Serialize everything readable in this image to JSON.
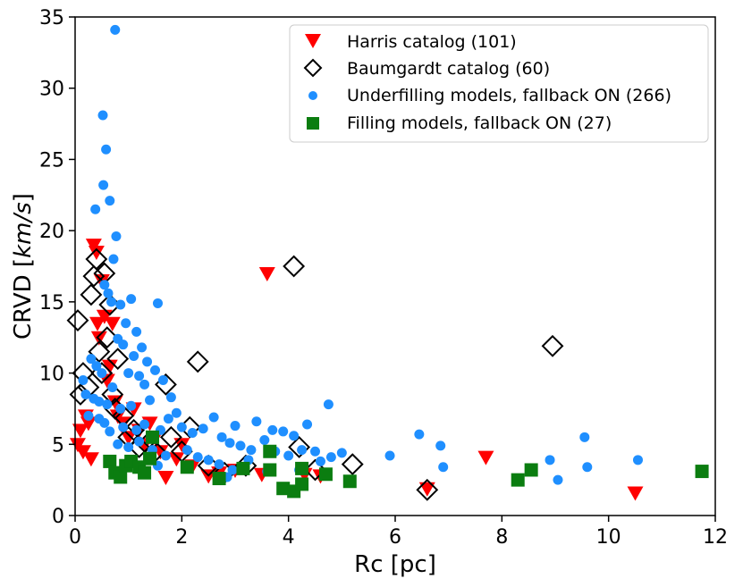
{
  "chart_data": {
    "type": "scatter",
    "xlabel": "Rc [pc]",
    "ylabel_prefix": "CRVD [",
    "ylabel_unit": "km/s",
    "ylabel_suffix": "]",
    "xlim": [
      0,
      12
    ],
    "ylim": [
      0,
      35
    ],
    "xticks": [
      0,
      2,
      4,
      6,
      8,
      10,
      12
    ],
    "yticks": [
      0,
      5,
      10,
      15,
      20,
      25,
      30,
      35
    ],
    "grid": false,
    "legend_position": "top-right",
    "series": [
      {
        "name": "Harris catalog (101)",
        "marker": "triangle-down",
        "color": "#ff0000",
        "points": [
          [
            0.05,
            5.0
          ],
          [
            0.1,
            6.0
          ],
          [
            0.15,
            4.5
          ],
          [
            0.2,
            7.0
          ],
          [
            0.25,
            6.5
          ],
          [
            0.3,
            4.0
          ],
          [
            0.35,
            19.0
          ],
          [
            0.4,
            18.5
          ],
          [
            0.42,
            13.5
          ],
          [
            0.45,
            12.5
          ],
          [
            0.5,
            16.5
          ],
          [
            0.55,
            14.0
          ],
          [
            0.6,
            9.5
          ],
          [
            0.65,
            10.5
          ],
          [
            0.7,
            13.5
          ],
          [
            0.75,
            8.0
          ],
          [
            0.8,
            7.0
          ],
          [
            0.9,
            6.5
          ],
          [
            1.0,
            5.5
          ],
          [
            1.1,
            7.5
          ],
          [
            1.2,
            6.0
          ],
          [
            1.3,
            5.0
          ],
          [
            1.4,
            6.5
          ],
          [
            1.5,
            5.5
          ],
          [
            1.6,
            4.5
          ],
          [
            1.7,
            2.7
          ],
          [
            1.9,
            4.0
          ],
          [
            2.0,
            5.0
          ],
          [
            2.2,
            3.5
          ],
          [
            2.5,
            2.8
          ],
          [
            2.7,
            3.0
          ],
          [
            3.0,
            3.2
          ],
          [
            3.5,
            2.9
          ],
          [
            3.6,
            17.0
          ],
          [
            4.3,
            2.9
          ],
          [
            4.6,
            2.8
          ],
          [
            6.6,
            1.9
          ],
          [
            7.7,
            4.1
          ],
          [
            10.5,
            1.6
          ]
        ]
      },
      {
        "name": "Baumgardt catalog (60)",
        "marker": "diamond",
        "color": "#000000",
        "points": [
          [
            0.05,
            13.7
          ],
          [
            0.1,
            8.5
          ],
          [
            0.15,
            10.0
          ],
          [
            0.25,
            9.0
          ],
          [
            0.3,
            15.5
          ],
          [
            0.35,
            16.8
          ],
          [
            0.4,
            18.0
          ],
          [
            0.45,
            11.5
          ],
          [
            0.5,
            10.0
          ],
          [
            0.55,
            17.0
          ],
          [
            0.6,
            12.5
          ],
          [
            0.65,
            14.8
          ],
          [
            0.7,
            8.5
          ],
          [
            0.75,
            7.5
          ],
          [
            0.8,
            11.0
          ],
          [
            0.9,
            7.0
          ],
          [
            1.0,
            5.5
          ],
          [
            1.1,
            6.0
          ],
          [
            1.2,
            4.8
          ],
          [
            1.35,
            5.0
          ],
          [
            1.5,
            4.5
          ],
          [
            1.7,
            9.2
          ],
          [
            1.8,
            5.5
          ],
          [
            2.0,
            4.5
          ],
          [
            2.15,
            6.2
          ],
          [
            2.3,
            10.8
          ],
          [
            2.5,
            3.5
          ],
          [
            2.8,
            3.0
          ],
          [
            3.2,
            3.5
          ],
          [
            4.1,
            17.5
          ],
          [
            4.2,
            4.8
          ],
          [
            4.5,
            3.2
          ],
          [
            5.2,
            3.6
          ],
          [
            6.6,
            1.8
          ],
          [
            8.95,
            11.9
          ]
        ]
      },
      {
        "name": "Underfilling models, fallback ON (266)",
        "marker": "circle",
        "color": "#1f8fff",
        "points": [
          [
            0.75,
            34.1
          ],
          [
            0.52,
            28.1
          ],
          [
            0.58,
            25.7
          ],
          [
            0.53,
            23.2
          ],
          [
            0.65,
            22.1
          ],
          [
            0.38,
            21.5
          ],
          [
            0.77,
            19.6
          ],
          [
            0.72,
            18.0
          ],
          [
            0.55,
            16.2
          ],
          [
            0.62,
            15.6
          ],
          [
            0.68,
            15.0
          ],
          [
            0.85,
            14.8
          ],
          [
            1.55,
            14.9
          ],
          [
            1.05,
            15.2
          ],
          [
            0.95,
            13.5
          ],
          [
            1.15,
            12.9
          ],
          [
            0.8,
            12.4
          ],
          [
            0.9,
            12.0
          ],
          [
            1.25,
            11.8
          ],
          [
            1.1,
            11.2
          ],
          [
            1.35,
            10.8
          ],
          [
            0.3,
            11.0
          ],
          [
            0.4,
            10.5
          ],
          [
            0.5,
            10.0
          ],
          [
            1.0,
            10.0
          ],
          [
            1.2,
            9.8
          ],
          [
            1.5,
            10.2
          ],
          [
            1.65,
            9.5
          ],
          [
            1.3,
            9.2
          ],
          [
            0.7,
            9.0
          ],
          [
            0.2,
            8.5
          ],
          [
            0.35,
            8.2
          ],
          [
            0.45,
            8.0
          ],
          [
            0.6,
            7.8
          ],
          [
            0.85,
            7.5
          ],
          [
            1.05,
            7.7
          ],
          [
            1.4,
            8.1
          ],
          [
            1.8,
            8.3
          ],
          [
            1.9,
            7.2
          ],
          [
            1.75,
            6.8
          ],
          [
            2.0,
            6.2
          ],
          [
            0.25,
            7.0
          ],
          [
            0.55,
            6.5
          ],
          [
            0.9,
            6.2
          ],
          [
            1.15,
            6.0
          ],
          [
            1.3,
            6.4
          ],
          [
            1.6,
            6.0
          ],
          [
            2.2,
            5.8
          ],
          [
            2.4,
            6.1
          ],
          [
            2.6,
            6.9
          ],
          [
            3.0,
            6.3
          ],
          [
            3.4,
            6.6
          ],
          [
            3.7,
            6.0
          ],
          [
            3.9,
            5.9
          ],
          [
            4.1,
            5.6
          ],
          [
            4.35,
            6.4
          ],
          [
            4.75,
            7.8
          ],
          [
            2.75,
            5.5
          ],
          [
            2.9,
            5.1
          ],
          [
            3.1,
            4.9
          ],
          [
            3.3,
            4.6
          ],
          [
            3.55,
            5.3
          ],
          [
            3.75,
            4.5
          ],
          [
            4.0,
            4.2
          ],
          [
            4.25,
            4.6
          ],
          [
            4.5,
            4.5
          ],
          [
            4.8,
            4.1
          ],
          [
            5.0,
            4.4
          ],
          [
            5.9,
            4.2
          ],
          [
            6.45,
            5.7
          ],
          [
            6.85,
            4.9
          ],
          [
            6.9,
            3.4
          ],
          [
            8.9,
            3.9
          ],
          [
            9.05,
            2.5
          ],
          [
            9.55,
            5.5
          ],
          [
            9.6,
            3.4
          ],
          [
            10.55,
            3.9
          ],
          [
            0.8,
            5.0
          ],
          [
            1.0,
            4.8
          ],
          [
            1.2,
            5.2
          ],
          [
            1.45,
            4.6
          ],
          [
            1.7,
            4.2
          ],
          [
            2.1,
            4.6
          ],
          [
            2.3,
            4.1
          ],
          [
            2.5,
            3.9
          ],
          [
            2.7,
            3.6
          ],
          [
            2.85,
            2.7
          ],
          [
            0.15,
            9.5
          ],
          [
            0.45,
            6.8
          ],
          [
            0.65,
            5.9
          ],
          [
            1.55,
            3.5
          ],
          [
            2.95,
            3.2
          ],
          [
            3.25,
            3.9
          ],
          [
            4.2,
            3.2
          ],
          [
            4.6,
            3.8
          ],
          [
            3.6,
            3.1
          ]
        ]
      },
      {
        "name": "Filling models, fallback ON (27)",
        "marker": "square",
        "color": "#0b7d10",
        "points": [
          [
            0.65,
            3.8
          ],
          [
            0.75,
            3.0
          ],
          [
            0.85,
            2.7
          ],
          [
            0.95,
            3.5
          ],
          [
            1.05,
            3.8
          ],
          [
            1.2,
            3.4
          ],
          [
            1.3,
            3.0
          ],
          [
            1.4,
            4.0
          ],
          [
            1.45,
            5.5
          ],
          [
            2.1,
            3.4
          ],
          [
            2.7,
            2.6
          ],
          [
            3.15,
            3.3
          ],
          [
            3.65,
            4.5
          ],
          [
            3.65,
            3.2
          ],
          [
            3.9,
            1.9
          ],
          [
            4.1,
            1.7
          ],
          [
            4.25,
            2.2
          ],
          [
            4.25,
            3.3
          ],
          [
            4.7,
            2.9
          ],
          [
            5.15,
            2.4
          ],
          [
            8.3,
            2.5
          ],
          [
            8.55,
            3.2
          ],
          [
            11.75,
            3.1
          ]
        ]
      }
    ]
  }
}
